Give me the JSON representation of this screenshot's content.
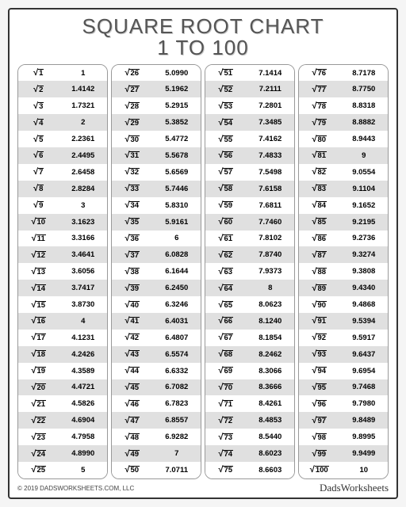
{
  "title_line1": "SQUARE ROOT CHART",
  "title_line2": "1 TO 100",
  "footer_copyright": "© 2019 DADSWORKSHEETS.COM, LLC",
  "footer_brand": "DadsWorksheets",
  "columns": [
    [
      {
        "n": "1",
        "v": "1"
      },
      {
        "n": "2",
        "v": "1.4142"
      },
      {
        "n": "3",
        "v": "1.7321"
      },
      {
        "n": "4",
        "v": "2"
      },
      {
        "n": "5",
        "v": "2.2361"
      },
      {
        "n": "6",
        "v": "2.4495"
      },
      {
        "n": "7",
        "v": "2.6458"
      },
      {
        "n": "8",
        "v": "2.8284"
      },
      {
        "n": "9",
        "v": "3"
      },
      {
        "n": "10",
        "v": "3.1623"
      },
      {
        "n": "11",
        "v": "3.3166"
      },
      {
        "n": "12",
        "v": "3.4641"
      },
      {
        "n": "13",
        "v": "3.6056"
      },
      {
        "n": "14",
        "v": "3.7417"
      },
      {
        "n": "15",
        "v": "3.8730"
      },
      {
        "n": "16",
        "v": "4"
      },
      {
        "n": "17",
        "v": "4.1231"
      },
      {
        "n": "18",
        "v": "4.2426"
      },
      {
        "n": "19",
        "v": "4.3589"
      },
      {
        "n": "20",
        "v": "4.4721"
      },
      {
        "n": "21",
        "v": "4.5826"
      },
      {
        "n": "22",
        "v": "4.6904"
      },
      {
        "n": "23",
        "v": "4.7958"
      },
      {
        "n": "24",
        "v": "4.8990"
      },
      {
        "n": "25",
        "v": "5"
      }
    ],
    [
      {
        "n": "26",
        "v": "5.0990"
      },
      {
        "n": "27",
        "v": "5.1962"
      },
      {
        "n": "28",
        "v": "5.2915"
      },
      {
        "n": "29",
        "v": "5.3852"
      },
      {
        "n": "30",
        "v": "5.4772"
      },
      {
        "n": "31",
        "v": "5.5678"
      },
      {
        "n": "32",
        "v": "5.6569"
      },
      {
        "n": "33",
        "v": "5.7446"
      },
      {
        "n": "34",
        "v": "5.8310"
      },
      {
        "n": "35",
        "v": "5.9161"
      },
      {
        "n": "36",
        "v": "6"
      },
      {
        "n": "37",
        "v": "6.0828"
      },
      {
        "n": "38",
        "v": "6.1644"
      },
      {
        "n": "39",
        "v": "6.2450"
      },
      {
        "n": "40",
        "v": "6.3246"
      },
      {
        "n": "41",
        "v": "6.4031"
      },
      {
        "n": "42",
        "v": "6.4807"
      },
      {
        "n": "43",
        "v": "6.5574"
      },
      {
        "n": "44",
        "v": "6.6332"
      },
      {
        "n": "45",
        "v": "6.7082"
      },
      {
        "n": "46",
        "v": "6.7823"
      },
      {
        "n": "47",
        "v": "6.8557"
      },
      {
        "n": "48",
        "v": "6.9282"
      },
      {
        "n": "49",
        "v": "7"
      },
      {
        "n": "50",
        "v": "7.0711"
      }
    ],
    [
      {
        "n": "51",
        "v": "7.1414"
      },
      {
        "n": "52",
        "v": "7.2111"
      },
      {
        "n": "53",
        "v": "7.2801"
      },
      {
        "n": "54",
        "v": "7.3485"
      },
      {
        "n": "55",
        "v": "7.4162"
      },
      {
        "n": "56",
        "v": "7.4833"
      },
      {
        "n": "57",
        "v": "7.5498"
      },
      {
        "n": "58",
        "v": "7.6158"
      },
      {
        "n": "59",
        "v": "7.6811"
      },
      {
        "n": "60",
        "v": "7.7460"
      },
      {
        "n": "61",
        "v": "7.8102"
      },
      {
        "n": "62",
        "v": "7.8740"
      },
      {
        "n": "63",
        "v": "7.9373"
      },
      {
        "n": "64",
        "v": "8"
      },
      {
        "n": "65",
        "v": "8.0623"
      },
      {
        "n": "66",
        "v": "8.1240"
      },
      {
        "n": "67",
        "v": "8.1854"
      },
      {
        "n": "68",
        "v": "8.2462"
      },
      {
        "n": "69",
        "v": "8.3066"
      },
      {
        "n": "70",
        "v": "8.3666"
      },
      {
        "n": "71",
        "v": "8.4261"
      },
      {
        "n": "72",
        "v": "8.4853"
      },
      {
        "n": "73",
        "v": "8.5440"
      },
      {
        "n": "74",
        "v": "8.6023"
      },
      {
        "n": "75",
        "v": "8.6603"
      }
    ],
    [
      {
        "n": "76",
        "v": "8.7178"
      },
      {
        "n": "77",
        "v": "8.7750"
      },
      {
        "n": "78",
        "v": "8.8318"
      },
      {
        "n": "79",
        "v": "8.8882"
      },
      {
        "n": "80",
        "v": "8.9443"
      },
      {
        "n": "81",
        "v": "9"
      },
      {
        "n": "82",
        "v": "9.0554"
      },
      {
        "n": "83",
        "v": "9.1104"
      },
      {
        "n": "84",
        "v": "9.1652"
      },
      {
        "n": "85",
        "v": "9.2195"
      },
      {
        "n": "86",
        "v": "9.2736"
      },
      {
        "n": "87",
        "v": "9.3274"
      },
      {
        "n": "88",
        "v": "9.3808"
      },
      {
        "n": "89",
        "v": "9.4340"
      },
      {
        "n": "90",
        "v": "9.4868"
      },
      {
        "n": "91",
        "v": "9.5394"
      },
      {
        "n": "92",
        "v": "9.5917"
      },
      {
        "n": "93",
        "v": "9.6437"
      },
      {
        "n": "94",
        "v": "9.6954"
      },
      {
        "n": "95",
        "v": "9.7468"
      },
      {
        "n": "96",
        "v": "9.7980"
      },
      {
        "n": "97",
        "v": "9.8489"
      },
      {
        "n": "98",
        "v": "9.8995"
      },
      {
        "n": "99",
        "v": "9.9499"
      },
      {
        "n": "100",
        "v": "10"
      }
    ]
  ]
}
